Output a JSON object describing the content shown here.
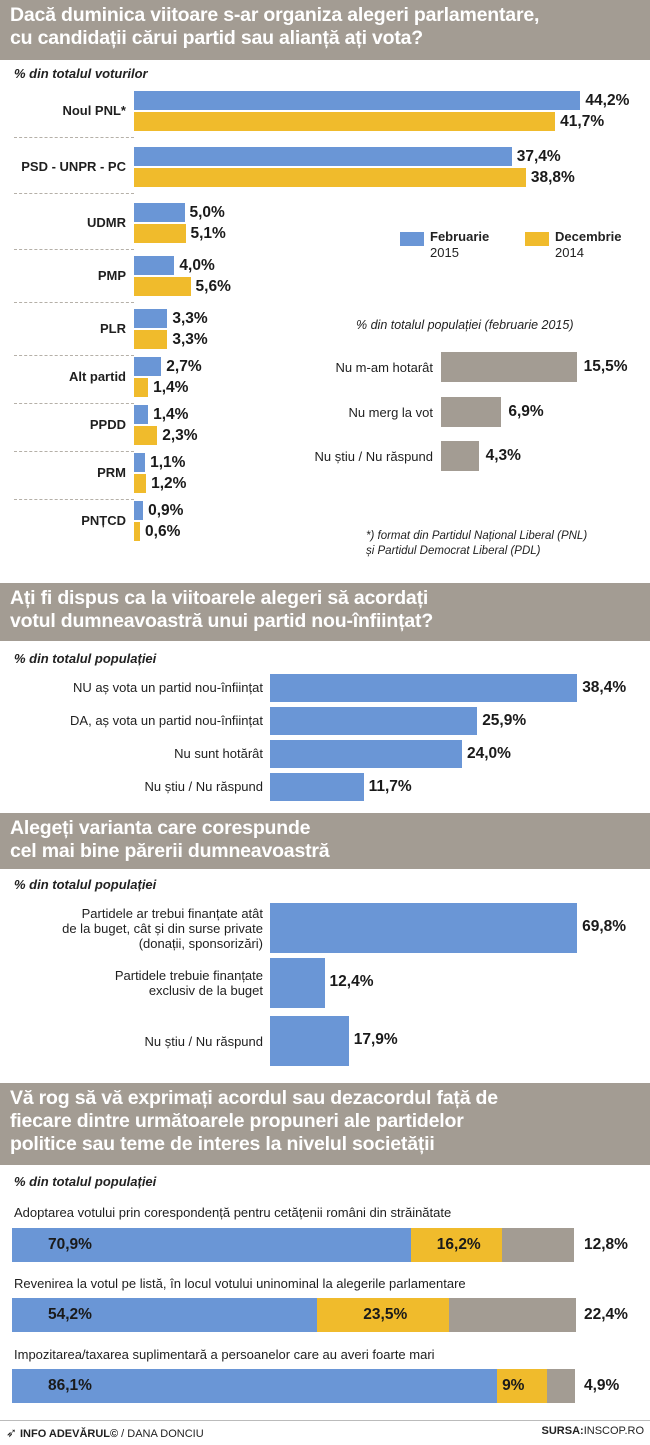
{
  "colors": {
    "blue": "#6a96d6",
    "yellow": "#f0bb2c",
    "gray": "#a39c93",
    "gray_bar": "#a39c93"
  },
  "section1": {
    "title_lines": [
      "Dacă duminica viitoare s-ar organiza alegeri parlamentare,",
      "cu candidații cărui partid sau alianță ați vota?"
    ],
    "subtitle": "% din totalul voturilor",
    "legend": [
      {
        "label_lines": [
          "Februarie",
          "2015"
        ],
        "color": "#6a96d6"
      },
      {
        "label_lines": [
          "Decembrie",
          "2014"
        ],
        "color": "#f0bb2c"
      }
    ],
    "note_lines": [
      "*) format din Partidul Național Liberal (PNL)",
      "și Partidul Democrat Liberal (PDL)"
    ]
  },
  "section1_right": {
    "subtitle": "% din totalul populației (februarie 2015)"
  },
  "section2": {
    "title_lines": [
      "Ați fi dispus ca la viitoarele alegeri să acordați",
      "votul dumneavoastră unui partid nou-înființat?"
    ],
    "subtitle": "% din totalul populației"
  },
  "section3": {
    "title_lines": [
      "Alegeți varianta care corespunde",
      "cel mai bine părerii dumneavoastră"
    ],
    "subtitle": "% din totalul populației"
  },
  "section4": {
    "title_lines": [
      "Vă rog să vă exprimați acordul sau dezacordul față de",
      "fiecare dintre următoarele propuneri ale partidelor",
      "politice sau teme de interes la nivelul societății"
    ],
    "subtitle": "% din totalul populației"
  },
  "footer": {
    "left_bold": "INFO ADEVĂRUL©",
    "left_rest": " / DANA DONCIU",
    "right_bold": "SURSA:",
    "right_rest": "INSCOP.RO"
  },
  "chart_data": [
    {
      "type": "bar",
      "orientation": "horizontal",
      "categories": [
        "Noul PNL*",
        "PSD - UNPR - PC",
        "UDMR",
        "PMP",
        "PLR",
        "Alt partid",
        "PPDD",
        "PRM",
        "PNȚCD"
      ],
      "series": [
        {
          "name": "Februarie 2015",
          "color": "#6a96d6",
          "values": [
            44.2,
            37.4,
            5.0,
            4.0,
            3.3,
            2.7,
            1.4,
            1.1,
            0.9
          ],
          "labels": [
            "44,2%",
            "37,4%",
            "5,0%",
            "4,0%",
            "3,3%",
            "2,7%",
            "1,4%",
            "1,1%",
            "0,9%"
          ]
        },
        {
          "name": "Decembrie 2014",
          "color": "#f0bb2c",
          "values": [
            41.7,
            38.8,
            5.1,
            5.6,
            3.3,
            1.4,
            2.3,
            1.2,
            0.6
          ],
          "labels": [
            "41,7%",
            "38,8%",
            "5,1%",
            "5,6%",
            "3,3%",
            "1,4%",
            "2,3%",
            "1,2%",
            "0,6%"
          ]
        }
      ]
    },
    {
      "type": "bar",
      "orientation": "horizontal",
      "categories": [
        "Nu m-am hotarât",
        "Nu merg la vot",
        "Nu știu / Nu răspund"
      ],
      "values": [
        15.5,
        6.9,
        4.3
      ],
      "labels": [
        "15,5%",
        "6,9%",
        "4,3%"
      ]
    },
    {
      "type": "bar",
      "orientation": "horizontal",
      "categories": [
        "NU aș vota un partid nou-înființat",
        "DA, aș vota un partid nou-înființat",
        "Nu sunt hotărât",
        "Nu știu / Nu răspund"
      ],
      "values": [
        38.4,
        25.9,
        24.0,
        11.7
      ],
      "labels": [
        "38,4%",
        "25,9%",
        "24,0%",
        "11,7%"
      ]
    },
    {
      "type": "bar",
      "orientation": "horizontal",
      "categories": [
        [
          "Partidele ar trebui finanțate atât",
          "de la buget, cât și din surse private",
          "(donații, sponsorizări)"
        ],
        [
          "Partidele trebuie finanțate",
          "exclusiv de la buget"
        ],
        [
          "Nu știu / Nu răspund"
        ]
      ],
      "values": [
        69.8,
        12.4,
        17.9
      ],
      "labels": [
        "69,8%",
        "12,4%",
        "17,9%"
      ]
    },
    {
      "type": "bar",
      "orientation": "horizontal",
      "stacked": true,
      "categories": [
        "Adoptarea votului prin corespondență pentru cetățenii români din străinătate",
        "Revenirea la votul pe listă, în locul votului uninominal la alegerile parlamentare",
        "Impozitarea/taxarea suplimentară a persoanelor care au averi foarte mari"
      ],
      "series": [
        {
          "color": "#6a96d6",
          "values": [
            70.9,
            54.2,
            86.1
          ],
          "labels": [
            "70,9%",
            "54,2%",
            "86,1%"
          ]
        },
        {
          "color": "#f0bb2c",
          "values": [
            16.2,
            23.5,
            9.0
          ],
          "labels": [
            "16,2%",
            "23,5%",
            "9%"
          ]
        },
        {
          "color": "#a39c93",
          "values": [
            12.8,
            22.4,
            4.9
          ],
          "labels": [
            "12,8%",
            "22,4%",
            "4,9%"
          ]
        }
      ]
    }
  ]
}
